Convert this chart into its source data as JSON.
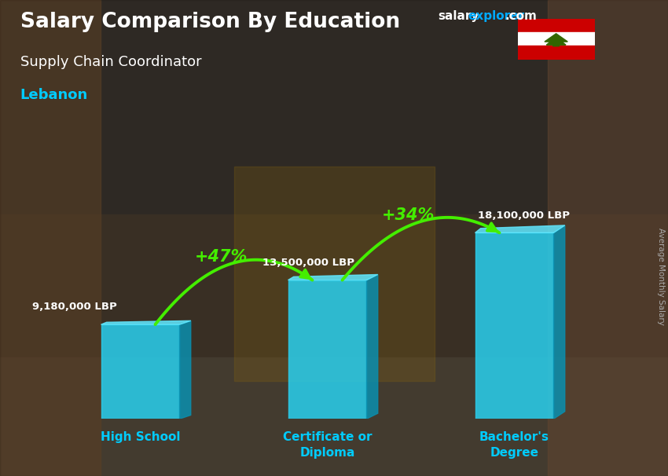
{
  "title_main": "Salary Comparison By Education",
  "subtitle": "Supply Chain Coordinator",
  "country": "Lebanon",
  "categories": [
    "High School",
    "Certificate or\nDiploma",
    "Bachelor's\nDegree"
  ],
  "values": [
    9180000,
    13500000,
    18100000
  ],
  "value_labels": [
    "9,180,000 LBP",
    "13,500,000 LBP",
    "18,100,000 LBP"
  ],
  "pct_labels": [
    "+47%",
    "+34%"
  ],
  "bar_color_face": "#29d0ef",
  "bar_color_dark": "#0a8faf",
  "bar_color_light": "#60e8ff",
  "bg_color": "#5a4a35",
  "title_color": "#ffffff",
  "subtitle_color": "#ffffff",
  "country_color": "#00ccff",
  "value_label_color": "#ffffff",
  "pct_color": "#66ff00",
  "arrow_color": "#44ee00",
  "ylabel_text": "Average Monthly Salary",
  "site_color_salary": "#ffffff",
  "site_color_explorer": "#00aaff",
  "ylim": [
    0,
    25000000
  ],
  "bar_positions": [
    0,
    1,
    2
  ],
  "bar_width": 0.42,
  "figsize": [
    8.5,
    6.06
  ],
  "dpi": 100
}
